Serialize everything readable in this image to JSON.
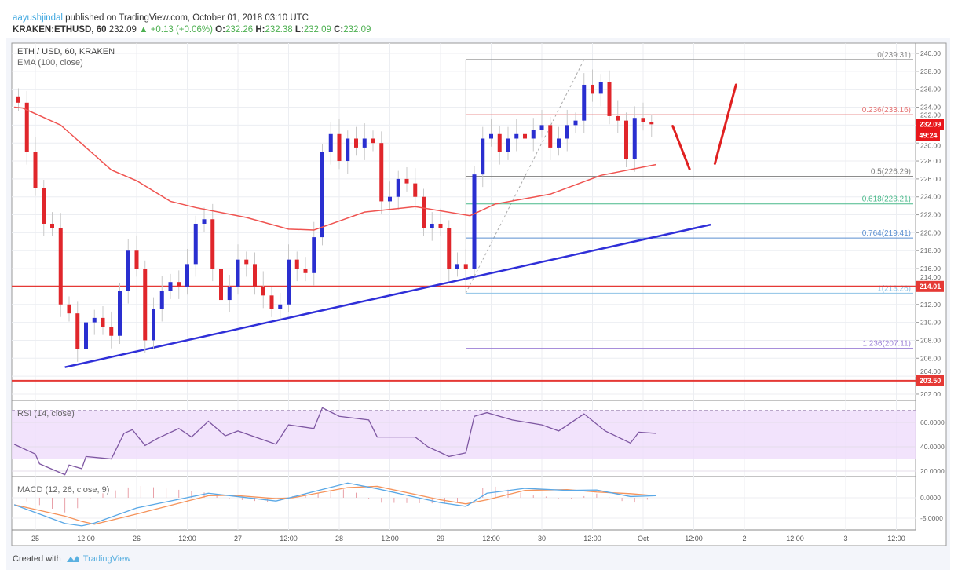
{
  "header": {
    "author": "aayushjindal",
    "published": "published on TradingView.com, October 01, 2018 03:10 UTC",
    "symbol": "KRAKEN:ETHUSD, 60",
    "last": "232.09",
    "change": "+0.13 (+0.06%)",
    "o_label": "O:",
    "o": "232.26",
    "h_label": "H:",
    "h": "232.38",
    "l_label": "L:",
    "l": "232.09",
    "c_label": "C:",
    "c": "232.09"
  },
  "legend": {
    "main": "ETH / USD, 60, KRAKEN",
    "ema": "EMA (100, close)",
    "rsi": "RSI (14, close)",
    "macd": "MACD (12, 26, close, 9)"
  },
  "footer": {
    "created_with": "Created with",
    "brand": "TradingView"
  },
  "colors": {
    "up": "#2a2fd0",
    "down": "#e0262b",
    "ema": "#ef5350",
    "trendline": "#2f2fd8",
    "support": "#e53935",
    "rsi_line": "#7e57a2",
    "rsi_band": "#efdcfb",
    "macd": "#5aa8e6",
    "signal": "#f5935b",
    "hist": "#e8a0a8"
  },
  "chart_data": {
    "type": "candlestick",
    "title": "ETH / USD, 60, KRAKEN",
    "price_ylim": [
      201,
      241
    ],
    "price_ticks": [
      "202.00",
      "204.00",
      "206.00",
      "208.00",
      "210.00",
      "212.00",
      "214.00",
      "216.00",
      "218.00",
      "220.00",
      "222.00",
      "224.00",
      "226.00",
      "228.00",
      "230.00",
      "232.00",
      "234.00",
      "236.00",
      "238.00",
      "240.00"
    ],
    "time_ticks": [
      {
        "t": "2018-09-25T00:00",
        "label": "25"
      },
      {
        "t": "2018-09-25T12:00",
        "label": "12:00"
      },
      {
        "t": "2018-09-26T00:00",
        "label": "26"
      },
      {
        "t": "2018-09-26T12:00",
        "label": "12:00"
      },
      {
        "t": "2018-09-27T00:00",
        "label": "27"
      },
      {
        "t": "2018-09-27T12:00",
        "label": "12:00"
      },
      {
        "t": "2018-09-28T00:00",
        "label": "28"
      },
      {
        "t": "2018-09-28T12:00",
        "label": "12:00"
      },
      {
        "t": "2018-09-29T00:00",
        "label": "29"
      },
      {
        "t": "2018-09-29T12:00",
        "label": "12:00"
      },
      {
        "t": "2018-09-30T00:00",
        "label": "30"
      },
      {
        "t": "2018-09-30T12:00",
        "label": "12:00"
      },
      {
        "t": "2018-10-01T00:00",
        "label": "Oct"
      },
      {
        "t": "2018-10-01T12:00",
        "label": "12:00"
      },
      {
        "t": "2018-10-02T00:00",
        "label": "2"
      },
      {
        "t": "2018-10-02T12:00",
        "label": "12:00"
      },
      {
        "t": "2018-10-03T00:00",
        "label": "3"
      },
      {
        "t": "2018-10-03T12:00",
        "label": "12:00"
      }
    ],
    "first_open": 235.2,
    "closes": [
      [
        "2018-09-24T20:00",
        234.5
      ],
      [
        "2018-09-24T22:00",
        229
      ],
      [
        "2018-09-25T00:00",
        225
      ],
      [
        "2018-09-25T02:00",
        221
      ],
      [
        "2018-09-25T04:00",
        220.5
      ],
      [
        "2018-09-25T06:00",
        212
      ],
      [
        "2018-09-25T08:00",
        211
      ],
      [
        "2018-09-25T10:00",
        207
      ],
      [
        "2018-09-25T12:00",
        210
      ],
      [
        "2018-09-25T14:00",
        210.5
      ],
      [
        "2018-09-25T16:00",
        209.5
      ],
      [
        "2018-09-25T18:00",
        208.5
      ],
      [
        "2018-09-25T20:00",
        213.5
      ],
      [
        "2018-09-25T22:00",
        218
      ],
      [
        "2018-09-26T00:00",
        216
      ],
      [
        "2018-09-26T02:00",
        208
      ],
      [
        "2018-09-26T04:00",
        211.5
      ],
      [
        "2018-09-26T06:00",
        213.5
      ],
      [
        "2018-09-26T08:00",
        214.5
      ],
      [
        "2018-09-26T10:00",
        214
      ],
      [
        "2018-09-26T12:00",
        216.5
      ],
      [
        "2018-09-26T14:00",
        221
      ],
      [
        "2018-09-26T16:00",
        221.5
      ],
      [
        "2018-09-26T18:00",
        216
      ],
      [
        "2018-09-26T20:00",
        212.5
      ],
      [
        "2018-09-26T22:00",
        214
      ],
      [
        "2018-09-27T00:00",
        217
      ],
      [
        "2018-09-27T02:00",
        216.5
      ],
      [
        "2018-09-27T04:00",
        214
      ],
      [
        "2018-09-27T06:00",
        213
      ],
      [
        "2018-09-27T08:00",
        211.5
      ],
      [
        "2018-09-27T10:00",
        212
      ],
      [
        "2018-09-27T12:00",
        217
      ],
      [
        "2018-09-27T14:00",
        216
      ],
      [
        "2018-09-27T16:00",
        215.5
      ],
      [
        "2018-09-27T18:00",
        219.5
      ],
      [
        "2018-09-27T20:00",
        229
      ],
      [
        "2018-09-27T22:00",
        231
      ],
      [
        "2018-09-28T00:00",
        228
      ],
      [
        "2018-09-28T02:00",
        230.5
      ],
      [
        "2018-09-28T04:00",
        229.5
      ],
      [
        "2018-09-28T06:00",
        230.5
      ],
      [
        "2018-09-28T08:00",
        230
      ],
      [
        "2018-09-28T10:00",
        223.5
      ],
      [
        "2018-09-28T12:00",
        224
      ],
      [
        "2018-09-28T14:00",
        226
      ],
      [
        "2018-09-28T16:00",
        225.5
      ],
      [
        "2018-09-28T18:00",
        224
      ],
      [
        "2018-09-28T20:00",
        220.5
      ],
      [
        "2018-09-28T22:00",
        221
      ],
      [
        "2018-09-29T00:00",
        220.5
      ],
      [
        "2018-09-29T02:00",
        216
      ],
      [
        "2018-09-29T04:00",
        216.5
      ],
      [
        "2018-09-29T06:00",
        216
      ],
      [
        "2018-09-29T08:00",
        226.5
      ],
      [
        "2018-09-29T10:00",
        230.5
      ],
      [
        "2018-09-29T12:00",
        231
      ],
      [
        "2018-09-29T14:00",
        229
      ],
      [
        "2018-09-29T16:00",
        230.5
      ],
      [
        "2018-09-29T18:00",
        231
      ],
      [
        "2018-09-29T20:00",
        230.5
      ],
      [
        "2018-09-29T22:00",
        231.5
      ],
      [
        "2018-09-30T00:00",
        232
      ],
      [
        "2018-09-30T02:00",
        229.5
      ],
      [
        "2018-09-30T04:00",
        230.5
      ],
      [
        "2018-09-30T06:00",
        232
      ],
      [
        "2018-09-30T08:00",
        232.5
      ],
      [
        "2018-09-30T10:00",
        236.5
      ],
      [
        "2018-09-30T12:00",
        235.5
      ],
      [
        "2018-09-30T14:00",
        236.8
      ],
      [
        "2018-09-30T16:00",
        233
      ],
      [
        "2018-09-30T18:00",
        232.5
      ],
      [
        "2018-09-30T20:00",
        228.2
      ],
      [
        "2018-09-30T22:00",
        232.8
      ],
      [
        "2018-10-01T00:00",
        232.3
      ],
      [
        "2018-10-01T02:00",
        232.09
      ]
    ],
    "ema100": [
      [
        "2018-09-24T19:00",
        234
      ],
      [
        "2018-09-24T21:00",
        233.9
      ],
      [
        "2018-09-25T06:00",
        232
      ],
      [
        "2018-09-25T18:00",
        227
      ],
      [
        "2018-09-26T00:00",
        225.8
      ],
      [
        "2018-09-26T08:00",
        223.5
      ],
      [
        "2018-09-26T14:00",
        222.8
      ],
      [
        "2018-09-27T02:00",
        221.7
      ],
      [
        "2018-09-27T12:00",
        220.4
      ],
      [
        "2018-09-27T18:00",
        220.3
      ],
      [
        "2018-09-28T00:00",
        221.3
      ],
      [
        "2018-09-28T06:00",
        222.3
      ],
      [
        "2018-09-28T18:00",
        222.9
      ],
      [
        "2018-09-29T07:00",
        221.9
      ],
      [
        "2018-09-29T13:00",
        223.2
      ],
      [
        "2018-09-30T02:00",
        224.3
      ],
      [
        "2018-09-30T14:00",
        226.4
      ],
      [
        "2018-10-01T03:00",
        227.6
      ]
    ],
    "horizontal_levels": [
      {
        "price": 214.01,
        "label": "214.01"
      },
      {
        "price": 203.5,
        "label": "203.50"
      }
    ],
    "trendline": {
      "from": [
        "2018-09-25T07:00",
        205.0
      ],
      "to": [
        "2018-10-01T16:00",
        220.9
      ]
    },
    "fibonacci": {
      "from": [
        "2018-09-29T06:00",
        213.26
      ],
      "to": [
        "2018-09-30T10:00",
        239.31
      ],
      "levels": [
        {
          "label": "0(239.31)",
          "price": 239.31,
          "color": "#8a8a8a"
        },
        {
          "label": "0.236(233.16)",
          "price": 233.16,
          "color": "#e57373"
        },
        {
          "label": "0.5(226.29)",
          "price": 226.29,
          "color": "#7d7d7d"
        },
        {
          "label": "0.618(223.21)",
          "price": 223.21,
          "color": "#49b98a"
        },
        {
          "label": "0.764(219.41)",
          "price": 219.41,
          "color": "#5b8fd0"
        },
        {
          "label": "1(213.26)",
          "price": 213.26,
          "color": "#8ec3e6"
        },
        {
          "label": "1.236(207.11)",
          "price": 207.11,
          "color": "#9b7fd6"
        }
      ]
    },
    "projection_arrows": [
      {
        "from": [
          "2018-10-01T07:00",
          231.9
        ],
        "to": [
          "2018-10-01T11:00",
          227.1
        ]
      },
      {
        "from": [
          "2018-10-01T17:00",
          227.7
        ],
        "to": [
          "2018-10-01T22:00",
          236.5
        ]
      }
    ],
    "price_badges": [
      {
        "label": "232.09",
        "price": 232.09
      },
      {
        "label": "49:24",
        "price": 230.8
      }
    ],
    "rsi": {
      "ylim": [
        10,
        78
      ],
      "bands": [
        30,
        70
      ],
      "ticks": [
        "20.0000",
        "40.0000",
        "60.0000"
      ],
      "values": [
        [
          "2018-09-24T19:00",
          42
        ],
        [
          "2018-09-25T00:00",
          34
        ],
        [
          "2018-09-25T01:00",
          26
        ],
        [
          "2018-09-25T07:00",
          17
        ],
        [
          "2018-09-25T08:00",
          25
        ],
        [
          "2018-09-25T11:00",
          22
        ],
        [
          "2018-09-25T12:00",
          32
        ],
        [
          "2018-09-25T18:00",
          30
        ],
        [
          "2018-09-25T21:00",
          51
        ],
        [
          "2018-09-25T23:00",
          54
        ],
        [
          "2018-09-26T02:00",
          41
        ],
        [
          "2018-09-26T05:00",
          47
        ],
        [
          "2018-09-26T10:00",
          55
        ],
        [
          "2018-09-26T13:00",
          48
        ],
        [
          "2018-09-26T17:00",
          61
        ],
        [
          "2018-09-26T21:00",
          49
        ],
        [
          "2018-09-27T00:00",
          53
        ],
        [
          "2018-09-27T09:00",
          42
        ],
        [
          "2018-09-27T12:00",
          58
        ],
        [
          "2018-09-27T18:00",
          55
        ],
        [
          "2018-09-27T20:00",
          72
        ],
        [
          "2018-09-28T00:00",
          65
        ],
        [
          "2018-09-28T07:00",
          62
        ],
        [
          "2018-09-28T09:00",
          48
        ],
        [
          "2018-09-28T18:00",
          48
        ],
        [
          "2018-09-28T21:00",
          40
        ],
        [
          "2018-09-29T02:00",
          32
        ],
        [
          "2018-09-29T06:00",
          35
        ],
        [
          "2018-09-29T08:00",
          65
        ],
        [
          "2018-09-29T11:00",
          68
        ],
        [
          "2018-09-29T17:00",
          62
        ],
        [
          "2018-09-30T00:00",
          58
        ],
        [
          "2018-09-30T04:00",
          53
        ],
        [
          "2018-09-30T10:00",
          67
        ],
        [
          "2018-09-30T15:00",
          53
        ],
        [
          "2018-09-30T21:00",
          43
        ],
        [
          "2018-09-30T23:00",
          52
        ],
        [
          "2018-10-01T03:00",
          51
        ]
      ]
    },
    "macd": {
      "ticks": [
        "0.0000",
        "-5.0000"
      ],
      "values": [
        [
          "2018-09-24T19:00",
          -1.7,
          -1.7
        ],
        [
          "2018-09-25T07:00",
          -6.3,
          -4.5
        ],
        [
          "2018-09-25T11:00",
          -6.9,
          -5.8
        ],
        [
          "2018-09-25T14:00",
          -6.2,
          -6.5
        ],
        [
          "2018-09-26T00:00",
          -2.5,
          -4.0
        ],
        [
          "2018-09-26T17:00",
          1.1,
          0.5
        ],
        [
          "2018-09-26T23:00",
          0.4,
          0.6
        ],
        [
          "2018-09-27T09:00",
          -0.8,
          -0.2
        ],
        [
          "2018-09-27T13:00",
          0.2,
          0.0
        ],
        [
          "2018-09-28T02:00",
          3.6,
          2.5
        ],
        [
          "2018-09-28T09:00",
          2.2,
          2.8
        ],
        [
          "2018-09-29T00:00",
          -1.2,
          -0.5
        ],
        [
          "2018-09-29T06:00",
          -2.1,
          -1.5
        ],
        [
          "2018-09-29T11:00",
          1.1,
          -0.5
        ],
        [
          "2018-09-29T20:00",
          2.3,
          1.8
        ],
        [
          "2018-09-30T06:00",
          1.8,
          2.0
        ],
        [
          "2018-09-30T13:00",
          1.9,
          1.4
        ],
        [
          "2018-09-30T21:00",
          0.3,
          1.0
        ],
        [
          "2018-10-01T03:00",
          0.5,
          0.5
        ]
      ]
    }
  }
}
